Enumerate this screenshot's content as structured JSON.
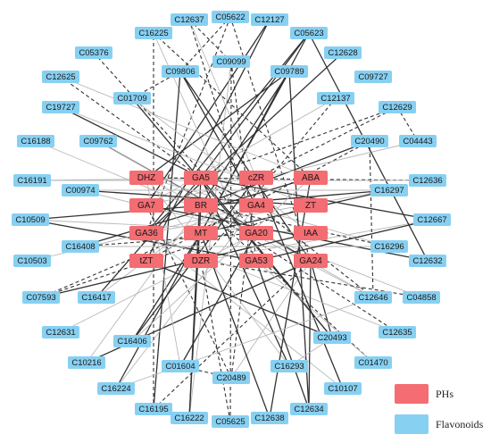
{
  "legend": {
    "ph_label": "PHs",
    "flavonoid_label": "Flavonoids"
  },
  "colors": {
    "ph": "#f36d72",
    "flavonoid": "#87d0f2"
  },
  "diagram": {
    "ph_nodes": [
      "DHZ",
      "GA5",
      "cZR",
      "ABA",
      "GA7",
      "BR",
      "GA4",
      "ZT",
      "GA36",
      "MT",
      "GA20",
      "IAA",
      "tZT",
      "DZR",
      "GA53",
      "GA24"
    ],
    "flavonoid_nodes": [
      "C12637",
      "C05622",
      "C12127",
      "C16225",
      "C05623",
      "C05376",
      "C09806",
      "C09099",
      "C09789",
      "C12628",
      "C12625",
      "C01709",
      "C09727",
      "C12137",
      "C19727",
      "C12629",
      "C09762",
      "C20490",
      "C04443",
      "C16188",
      "C16191",
      "C00974",
      "C12636",
      "C16297",
      "C10509",
      "C12667",
      "C16408",
      "C10503",
      "C16296",
      "C12632",
      "C07593",
      "C16417",
      "C12646",
      "C04858",
      "C12631",
      "C16406",
      "C20493",
      "C12635",
      "C10216",
      "C01604",
      "C20489",
      "C16293",
      "C01470",
      "C16224",
      "C10107",
      "C16195",
      "C16222",
      "C05625",
      "C12638",
      "C12634"
    ]
  }
}
